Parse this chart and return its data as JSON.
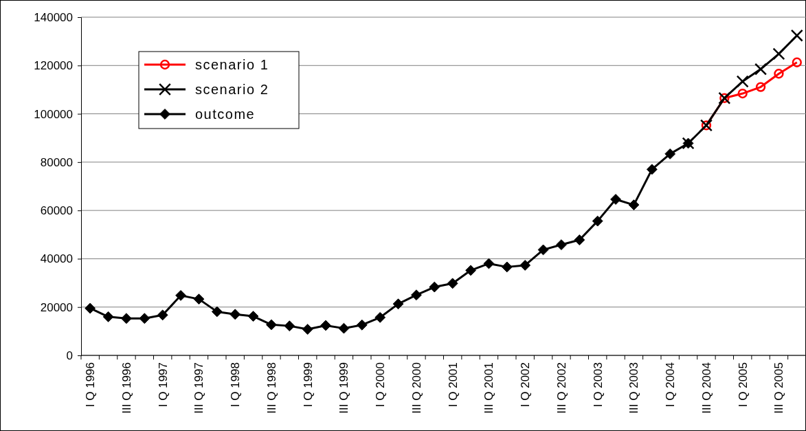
{
  "chart_data": {
    "type": "line",
    "categories": [
      "I Q 1996",
      null,
      "III Q 1996",
      null,
      "I Q 1997",
      null,
      "III Q 1997",
      null,
      "I Q 1998",
      null,
      "III Q 1998",
      null,
      "I Q 1999",
      null,
      "III Q 1999",
      null,
      "I Q 2000",
      null,
      "III Q 2000",
      null,
      "I Q 2001",
      null,
      "III Q 2001",
      null,
      "I Q 2002",
      null,
      "III Q 2002",
      null,
      "I Q 2003",
      null,
      "III Q 2003",
      null,
      "I Q 2004",
      null,
      "III Q 2004",
      null,
      "I Q 2005",
      null,
      "III Q 2005",
      null
    ],
    "series": [
      {
        "name": "scenario 1",
        "color": "#ff0000",
        "marker": "circle",
        "values": [
          null,
          null,
          null,
          null,
          null,
          null,
          null,
          null,
          null,
          null,
          null,
          null,
          null,
          null,
          null,
          null,
          null,
          null,
          null,
          null,
          null,
          null,
          null,
          null,
          null,
          null,
          null,
          null,
          null,
          null,
          null,
          null,
          null,
          null,
          95200,
          106500,
          108400,
          111100,
          116600,
          121300
        ]
      },
      {
        "name": "scenario 2",
        "color": "#000000",
        "marker": "cross",
        "values": [
          null,
          null,
          null,
          null,
          null,
          null,
          null,
          null,
          null,
          null,
          null,
          null,
          null,
          null,
          null,
          null,
          null,
          null,
          null,
          null,
          null,
          null,
          null,
          null,
          null,
          null,
          null,
          null,
          null,
          null,
          null,
          null,
          null,
          87800,
          95200,
          106500,
          113400,
          118500,
          124800,
          132400
        ]
      },
      {
        "name": "outcome",
        "color": "#000000",
        "marker": "diamond",
        "values": [
          19500,
          16000,
          15300,
          15300,
          16700,
          24800,
          23300,
          18100,
          17000,
          16200,
          12700,
          12200,
          10800,
          12400,
          11200,
          12600,
          15700,
          21300,
          25000,
          28300,
          29800,
          35200,
          38000,
          36600,
          37300,
          43700,
          45800,
          47800,
          55600,
          64600,
          62300,
          77000,
          83400,
          87800,
          null,
          null,
          null,
          null,
          null,
          null
        ]
      }
    ],
    "ylim": [
      0,
      140000
    ],
    "yticks": [
      0,
      20000,
      40000,
      60000,
      80000,
      100000,
      120000,
      140000
    ],
    "grid": "y",
    "legend": "top left",
    "line_style": "solid"
  }
}
